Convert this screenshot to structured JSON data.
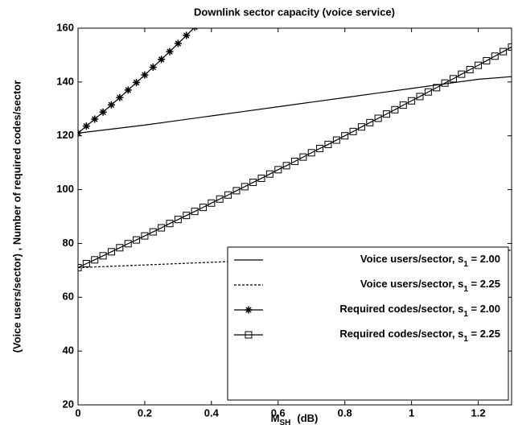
{
  "chart_data": {
    "type": "line",
    "title": "Downlink sector capacity (voice service)",
    "ylabel": "(Voice users/sector)  ,  Number of required codes/sector",
    "xlabel": {
      "base": "M",
      "sub": "SH",
      "unit": "(dB)"
    },
    "xlim": [
      0,
      1.3
    ],
    "xticks": [
      0,
      0.2,
      0.4,
      0.6,
      0.8,
      1,
      1.2
    ],
    "ylim": [
      20,
      160
    ],
    "yticks": [
      20,
      40,
      60,
      80,
      100,
      120,
      140,
      160
    ],
    "legend": "lower right",
    "series": [
      {
        "name": "Voice users/sector, s1 = 2.00",
        "color": "#000000",
        "style": "solid",
        "marker": "none",
        "x": [
          0,
          0.1,
          0.2,
          0.3,
          0.4,
          0.5,
          0.6,
          0.7,
          0.8,
          0.9,
          1.0,
          1.1,
          1.2,
          1.3
        ],
        "values": [
          121,
          122.5,
          124,
          125.7,
          127.4,
          129.1,
          130.8,
          132.5,
          134.2,
          135.9,
          137.6,
          139.3,
          141,
          142
        ]
      },
      {
        "name": "Voice users/sector, s1 = 2.25",
        "color": "#000000",
        "style": "dotted",
        "marker": "none",
        "x": [
          0,
          0.1,
          0.2,
          0.3,
          0.4,
          0.5,
          0.6,
          0.7,
          0.8,
          0.9,
          1.0,
          1.1,
          1.2,
          1.3
        ],
        "values": [
          71,
          71.5,
          72,
          72.5,
          73,
          73.5,
          74,
          74.5,
          75,
          75.5,
          76,
          76.5,
          77,
          77.5
        ]
      },
      {
        "name": "Required codes/sector, s1 = 2.00",
        "color": "#000000",
        "style": "solid",
        "marker": "star",
        "x": [
          0,
          0.025,
          0.05,
          0.075,
          0.1,
          0.125,
          0.15,
          0.175,
          0.2,
          0.225,
          0.25,
          0.275,
          0.3,
          0.325,
          0.35
        ],
        "values": [
          121,
          123.6,
          126.2,
          128.8,
          131.5,
          134.2,
          137,
          139.8,
          142.6,
          145.5,
          148.4,
          151.3,
          154.3,
          157.3,
          160.4
        ]
      },
      {
        "name": "Required codes/sector, s1 = 2.25",
        "color": "#000000",
        "style": "solid",
        "marker": "square",
        "x": [
          0,
          0.025,
          0.05,
          0.075,
          0.1,
          0.125,
          0.15,
          0.175,
          0.2,
          0.225,
          0.25,
          0.275,
          0.3,
          0.325,
          0.35,
          0.375,
          0.4,
          0.425,
          0.45,
          0.475,
          0.5,
          0.525,
          0.55,
          0.575,
          0.6,
          0.625,
          0.65,
          0.675,
          0.7,
          0.725,
          0.75,
          0.775,
          0.8,
          0.825,
          0.85,
          0.875,
          0.9,
          0.925,
          0.95,
          0.975,
          1.0,
          1.025,
          1.05,
          1.075,
          1.1,
          1.125,
          1.15,
          1.175,
          1.2,
          1.225,
          1.25,
          1.275,
          1.3
        ],
        "values": [
          71,
          72.5,
          73.9,
          75.4,
          76.9,
          78.4,
          79.9,
          81.3,
          82.8,
          84.3,
          85.8,
          87.4,
          88.9,
          90.4,
          91.9,
          93.4,
          95,
          96.5,
          98,
          99.6,
          101.1,
          102.7,
          104.2,
          105.8,
          107.4,
          108.9,
          110.5,
          112.1,
          113.7,
          115.3,
          116.8,
          118.4,
          120,
          121.6,
          123.3,
          124.9,
          126.5,
          128.1,
          129.7,
          131.4,
          133,
          134.6,
          136.3,
          137.9,
          139.6,
          141.2,
          142.9,
          144.6,
          146.2,
          147.9,
          149.6,
          151.3,
          153
        ]
      }
    ]
  }
}
